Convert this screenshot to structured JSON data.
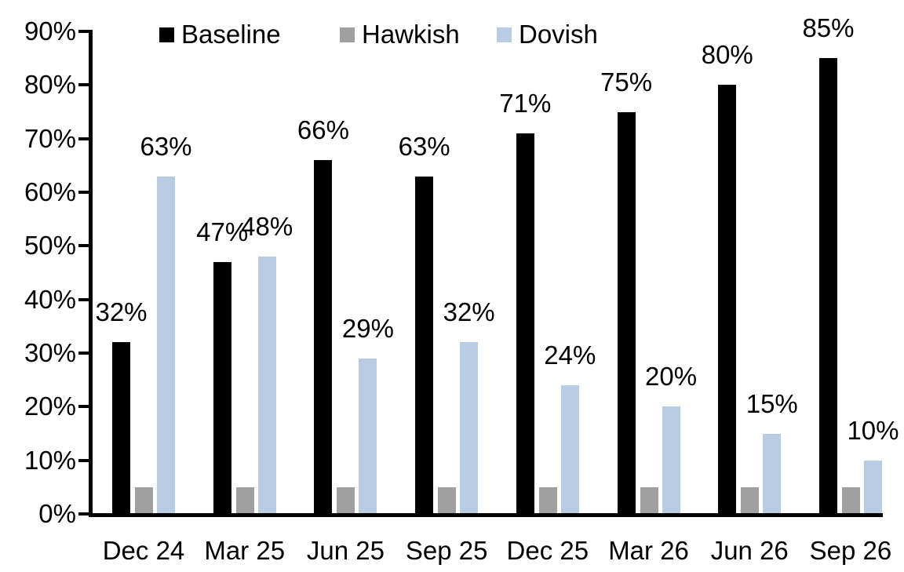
{
  "chart_data": {
    "type": "bar",
    "title": "",
    "xlabel": "",
    "ylabel": "",
    "categories": [
      "Dec 24",
      "Mar 25",
      "Jun 25",
      "Sep 25",
      "Dec 25",
      "Mar 26",
      "Jun 26",
      "Sep 26"
    ],
    "series": [
      {
        "name": "Baseline",
        "color": "#000000",
        "values": [
          32,
          47,
          66,
          63,
          71,
          75,
          80,
          85
        ],
        "data_labels": [
          "32%",
          "47%",
          "66%",
          "63%",
          "71%",
          "75%",
          "80%",
          "85%"
        ]
      },
      {
        "name": "Hawkish",
        "color": "#A0A0A0",
        "values": [
          5,
          5,
          5,
          5,
          5,
          5,
          5,
          5
        ],
        "data_labels": [
          "",
          "",
          "",
          "",
          "",
          "",
          "",
          ""
        ]
      },
      {
        "name": "Dovish",
        "color": "#B8CCE4",
        "values": [
          63,
          48,
          29,
          32,
          24,
          20,
          15,
          10
        ],
        "data_labels": [
          "63%",
          "48%",
          "29%",
          "32%",
          "24%",
          "20%",
          "15%",
          "10%"
        ]
      }
    ],
    "ylim": [
      0,
      90
    ],
    "ytick_interval": 10,
    "ytick_labels": [
      "0%",
      "10%",
      "20%",
      "30%",
      "40%",
      "50%",
      "60%",
      "70%",
      "80%",
      "90%"
    ],
    "legend_entries": [
      "Baseline",
      "Hawkish",
      "Dovish"
    ],
    "legend_position": "top",
    "grid": false,
    "background_color": "#FFFFFF",
    "axis_color": "#000000"
  }
}
